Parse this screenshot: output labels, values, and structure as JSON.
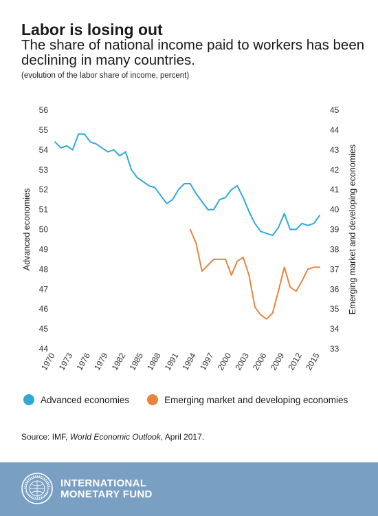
{
  "header": {
    "title": "Labor is losing out",
    "subtitle": "The share of national income paid to workers has been declining in many countries.",
    "note": "(evolution of the labor share of income, percent)"
  },
  "chart_data": {
    "type": "line",
    "title": "Labor is losing out",
    "subtitle": "The share of national income paid to workers has been declining in many countries.",
    "ylabel_left": "Advanced economies",
    "ylabel_right": "Emerging market and developing economies",
    "ylim_left": [
      44,
      56
    ],
    "ylim_right": [
      33,
      45
    ],
    "yticks_left": [
      44,
      45,
      46,
      47,
      48,
      49,
      50,
      51,
      52,
      53,
      54,
      55,
      56
    ],
    "yticks_right": [
      33,
      34,
      35,
      36,
      37,
      38,
      39,
      40,
      41,
      42,
      43,
      44,
      45
    ],
    "xlim": [
      1970,
      2015
    ],
    "xticks": [
      1970,
      1973,
      1976,
      1979,
      1982,
      1985,
      1988,
      1991,
      1994,
      1997,
      2000,
      2003,
      2006,
      2009,
      2012,
      2015
    ],
    "grid": false,
    "legend_position": "bottom",
    "series": [
      {
        "name": "Advanced economies",
        "axis": "left",
        "color": "#2fa9d8",
        "x": [
          1970,
          1971,
          1972,
          1973,
          1974,
          1975,
          1976,
          1977,
          1978,
          1979,
          1980,
          1981,
          1982,
          1983,
          1984,
          1985,
          1986,
          1987,
          1988,
          1989,
          1990,
          1991,
          1992,
          1993,
          1994,
          1995,
          1996,
          1997,
          1998,
          1999,
          2000,
          2001,
          2002,
          2003,
          2004,
          2005,
          2006,
          2007,
          2008,
          2009,
          2010,
          2011,
          2012,
          2013,
          2014,
          2015
        ],
        "values": [
          54.4,
          54.1,
          54.2,
          54.0,
          54.8,
          54.8,
          54.4,
          54.3,
          54.1,
          53.9,
          54.0,
          53.7,
          53.9,
          53.0,
          52.6,
          52.4,
          52.2,
          52.1,
          51.7,
          51.3,
          51.5,
          52.0,
          52.3,
          52.3,
          51.8,
          51.4,
          51.0,
          51.0,
          51.5,
          51.6,
          52.0,
          52.2,
          51.6,
          50.9,
          50.3,
          49.9,
          49.8,
          49.7,
          50.1,
          50.8,
          50.0,
          50.0,
          50.3,
          50.2,
          50.3,
          50.7
        ]
      },
      {
        "name": "Emerging market and developing economies",
        "axis": "right",
        "color": "#e8843d",
        "x": [
          1993,
          1994,
          1995,
          1996,
          1997,
          1998,
          1999,
          2000,
          2001,
          2002,
          2003,
          2004,
          2005,
          2006,
          2007,
          2008,
          2009,
          2010,
          2011,
          2012,
          2013,
          2014,
          2015
        ],
        "values": [
          39.0,
          38.3,
          36.9,
          37.2,
          37.5,
          37.5,
          37.5,
          36.7,
          37.4,
          37.6,
          36.7,
          35.1,
          34.7,
          34.5,
          34.8,
          35.9,
          37.1,
          36.1,
          35.9,
          36.4,
          37.0,
          37.1,
          37.1
        ]
      }
    ]
  },
  "legend": {
    "items": [
      {
        "label": "Advanced economies",
        "color": "#2fa9d8"
      },
      {
        "label": "Emerging market and developing economies",
        "color": "#e8843d"
      }
    ]
  },
  "source": {
    "prefix": "Source: IMF, ",
    "publication": "World Economic Outlook",
    "suffix": ", April 2017."
  },
  "footer": {
    "line1": "INTERNATIONAL",
    "line2": "MONETARY FUND",
    "background": "#799fc3",
    "seal_icon": "imf-seal-icon"
  }
}
